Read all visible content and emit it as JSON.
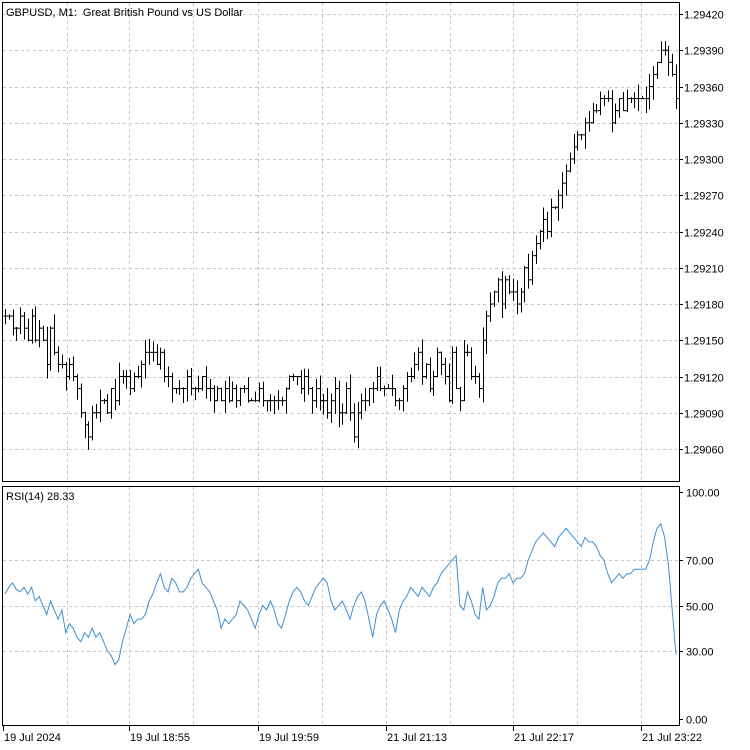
{
  "window": {
    "symbol_label": "GBPUSD, M1:",
    "description": "Great British Pound vs US Dollar",
    "indicator_label": "RSI(14) 28.33"
  },
  "colors": {
    "price_bars": "#000000",
    "rsi_line": "#3d8fd6",
    "grid": "#c8c8c8",
    "frame": "#000000",
    "background": "#ffffff"
  },
  "chart_data": [
    {
      "type": "line",
      "style": "ohlc-bars",
      "title": "GBPUSD, M1:  Great British Pound vs US Dollar",
      "ylim": [
        1.2903,
        1.2944
      ],
      "y_ticks": [
        "1.29420",
        "1.29390",
        "1.29360",
        "1.29330",
        "1.29300",
        "1.29270",
        "1.29240",
        "1.29210",
        "1.29180",
        "1.29150",
        "1.29120",
        "1.29090",
        "1.29060"
      ],
      "x_ticks": [
        "19 Jul 2024",
        "19 Jul 18:55",
        "19 Jul 19:59",
        "21 Jul 21:13",
        "21 Jul 22:17",
        "21 Jul 23:22"
      ],
      "grid": true,
      "series": [
        {
          "approx_close": [
            1.2917,
            1.2917,
            1.2916,
            1.2916,
            1.2917,
            1.2916,
            1.2915,
            1.2917,
            1.2915,
            1.2916,
            1.2915,
            1.2913,
            1.2916,
            1.2914,
            1.2913,
            1.2913,
            1.2912,
            1.2913,
            1.2912,
            1.2911,
            1.2909,
            1.2908,
            1.2907,
            1.2909,
            1.2909,
            1.291,
            1.291,
            1.2909,
            1.2911,
            1.291,
            1.2912,
            1.2912,
            1.2912,
            1.2911,
            1.2912,
            1.2912,
            1.2913,
            1.2914,
            1.2914,
            1.2914,
            1.2913,
            1.2914,
            1.2912,
            1.2912,
            1.2911,
            1.2911,
            1.2911,
            1.2911,
            1.2912,
            1.2911,
            1.2911,
            1.2911,
            1.2912,
            1.2911,
            1.2911,
            1.291,
            1.2911,
            1.291,
            1.2911,
            1.291,
            1.2911,
            1.291,
            1.2911,
            1.2911,
            1.291,
            1.291,
            1.291,
            1.2911,
            1.291,
            1.291,
            1.291,
            1.291,
            1.291,
            1.291,
            1.2911,
            1.2912,
            1.2912,
            1.2912,
            1.2911,
            1.2912,
            1.2911,
            1.291,
            1.2911,
            1.291,
            1.291,
            1.2909,
            1.291,
            1.2911,
            1.2909,
            1.2909,
            1.2911,
            1.2909,
            1.2907,
            1.2909,
            1.291,
            1.291,
            1.2911,
            1.2911,
            1.2912,
            1.2911,
            1.2911,
            1.2911,
            1.2911,
            1.291,
            1.291,
            1.2911,
            1.2912,
            1.2912,
            1.2913,
            1.2914,
            1.2912,
            1.2913,
            1.2911,
            1.2912,
            1.2914,
            1.2913,
            1.2912,
            1.291,
            1.2914,
            1.2911,
            1.291,
            1.2914,
            1.2914,
            1.2912,
            1.2912,
            1.2911,
            1.2915,
            1.2917,
            1.2918,
            1.2919,
            1.292,
            1.2918,
            1.292,
            1.2919,
            1.2919,
            1.2918,
            1.2919,
            1.2921,
            1.292,
            1.2922,
            1.2923,
            1.2924,
            1.2925,
            1.2924,
            1.2926,
            1.2926,
            1.2927,
            1.2928,
            1.2929,
            1.293,
            1.2931,
            1.2932,
            1.2932,
            1.2933,
            1.2933,
            1.2934,
            1.2934,
            1.2935,
            1.2935,
            1.2935,
            1.2933,
            1.2934,
            1.2935,
            1.2934,
            1.2935,
            1.2935,
            1.2935,
            1.2935,
            1.2935,
            1.2935,
            1.2936,
            1.2937,
            1.2938,
            1.2939,
            1.2939,
            1.2938,
            1.2937,
            1.2935
          ]
        }
      ]
    },
    {
      "type": "line",
      "title": "RSI(14) 28.33",
      "ylim": [
        0,
        100
      ],
      "y_ticks": [
        "100.00",
        "70.00",
        "50.00",
        "30.00",
        "0.00"
      ],
      "grid": true,
      "series": [
        {
          "name": "RSI(14)",
          "approx_values": [
            55,
            58,
            60,
            57,
            56,
            58,
            55,
            58,
            52,
            54,
            50,
            46,
            52,
            48,
            44,
            48,
            38,
            42,
            40,
            36,
            34,
            38,
            36,
            40,
            36,
            38,
            34,
            30,
            28,
            24,
            26,
            34,
            40,
            46,
            42,
            44,
            44,
            46,
            52,
            55,
            60,
            64,
            58,
            56,
            62,
            60,
            56,
            56,
            58,
            62,
            64,
            66,
            60,
            58,
            56,
            52,
            48,
            40,
            44,
            42,
            44,
            46,
            52,
            50,
            48,
            44,
            40,
            46,
            50,
            48,
            52,
            48,
            42,
            40,
            46,
            52,
            56,
            58,
            56,
            52,
            50,
            54,
            58,
            60,
            62,
            60,
            52,
            48,
            50,
            52,
            48,
            44,
            50,
            54,
            56,
            52,
            44,
            36,
            46,
            50,
            52,
            48,
            44,
            38,
            48,
            52,
            54,
            58,
            56,
            54,
            58,
            56,
            54,
            58,
            60,
            64,
            66,
            68,
            70,
            72,
            50,
            48,
            56,
            52,
            46,
            44,
            58,
            48,
            50,
            54,
            60,
            62,
            62,
            64,
            60,
            62,
            62,
            64,
            70,
            74,
            78,
            80,
            82,
            80,
            78,
            76,
            80,
            82,
            84,
            82,
            80,
            78,
            76,
            80,
            78,
            78,
            76,
            72,
            70,
            64,
            60,
            62,
            64,
            62,
            64,
            64,
            66,
            66,
            66,
            66,
            70,
            78,
            84,
            86,
            80,
            68,
            48,
            28.33
          ]
        }
      ]
    }
  ]
}
